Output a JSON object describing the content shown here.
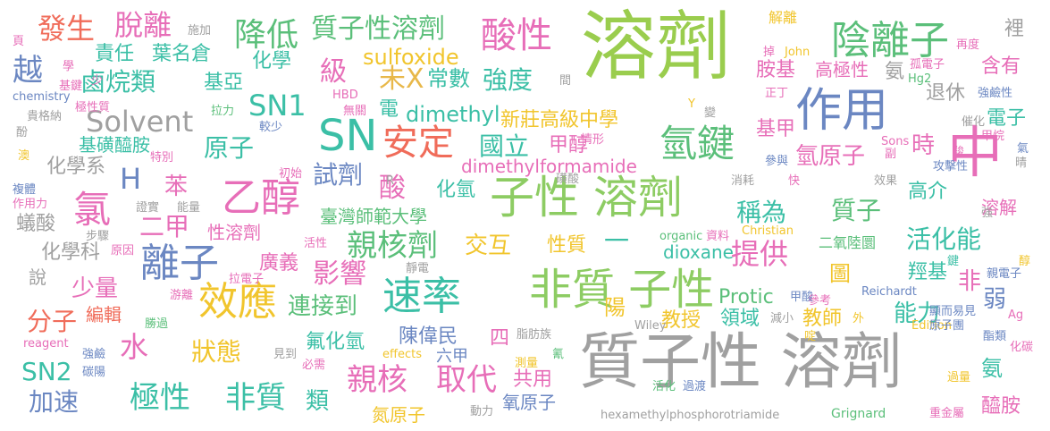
{
  "words": [
    {
      "text": "質子性 溶劑",
      "color": "#a0a0a0"
    },
    {
      "text": "溶劑",
      "color": "#9acd4e"
    },
    {
      "text": "子性 溶劑",
      "color": "#8dcc63"
    },
    {
      "text": "非質 子性",
      "color": "#8dcc63"
    },
    {
      "text": "SN",
      "color": "#3bbfa6"
    },
    {
      "text": "中",
      "color": "#e76eb8"
    },
    {
      "text": "作用",
      "color": "#6b87c2"
    },
    {
      "text": "陰離子",
      "color": "#5bbf7a"
    },
    {
      "text": "效應",
      "color": "#f1c52d"
    },
    {
      "text": "離子",
      "color": "#6b87c2"
    },
    {
      "text": "速率",
      "color": "#3bbfa6"
    },
    {
      "text": "乙醇",
      "color": "#e76eb8"
    },
    {
      "text": "氫鍵",
      "color": "#5bbf7a"
    },
    {
      "text": "安定",
      "color": "#f06c5a"
    },
    {
      "text": "酸性",
      "color": "#e76eb8"
    },
    {
      "text": "極性",
      "color": "#3bbfa6"
    },
    {
      "text": "非質",
      "color": "#3bbfa6"
    },
    {
      "text": "親核",
      "color": "#e76eb8"
    },
    {
      "text": "取代",
      "color": "#e76eb8"
    },
    {
      "text": "親核劑",
      "color": "#5bbf7a"
    },
    {
      "text": "質子性溶劑",
      "color": "#5bbf7a"
    },
    {
      "text": "降低",
      "color": "#5bbf7a"
    },
    {
      "text": "脫離",
      "color": "#e76eb8"
    },
    {
      "text": "發生",
      "color": "#f06c5a"
    },
    {
      "text": "Solvent",
      "color": "#a0a0a0"
    },
    {
      "text": "SN1",
      "color": "#3bbfa6"
    },
    {
      "text": "氯",
      "color": "#e76eb8"
    },
    {
      "text": "H",
      "color": "#6b87c2"
    },
    {
      "text": "苯",
      "color": "#e76eb8"
    },
    {
      "text": "二甲",
      "color": "#e76eb8"
    },
    {
      "text": "鹵烷類",
      "color": "#3bbfa6"
    },
    {
      "text": "責任",
      "color": "#3bbfa6"
    },
    {
      "text": "葉名倉",
      "color": "#3bbfa6"
    },
    {
      "text": "基亞",
      "color": "#3bbfa6"
    },
    {
      "text": "化學",
      "color": "#3bbfa6"
    },
    {
      "text": "越",
      "color": "#6b87c2"
    },
    {
      "text": "級",
      "color": "#e76eb8"
    },
    {
      "text": "sulfoxide",
      "color": "#f1c52d"
    },
    {
      "text": "未X",
      "color": "#e8b84a"
    },
    {
      "text": "常數",
      "color": "#3bbfa6"
    },
    {
      "text": "強度",
      "color": "#3bbfa6"
    },
    {
      "text": "國立",
      "color": "#3bbfa6"
    },
    {
      "text": "甲醇",
      "color": "#e76eb8"
    },
    {
      "text": "新莊高級中學",
      "color": "#f1c52d"
    },
    {
      "text": "dimethyl",
      "color": "#3bbfa6"
    },
    {
      "text": "電",
      "color": "#3bbfa6"
    },
    {
      "text": "dimethylformamide",
      "color": "#e76eb8"
    },
    {
      "text": "試劑",
      "color": "#6b87c2"
    },
    {
      "text": "原子",
      "color": "#3bbfa6"
    },
    {
      "text": "酸",
      "color": "#e76eb8"
    },
    {
      "text": "化氫",
      "color": "#3bbfa6"
    },
    {
      "text": "臺灣師範大學",
      "color": "#5bbf7a"
    },
    {
      "text": "交互",
      "color": "#f1c52d"
    },
    {
      "text": "性質",
      "color": "#f1c52d"
    },
    {
      "text": "一",
      "color": "#3bbfa6"
    },
    {
      "text": "影響",
      "color": "#e76eb8"
    },
    {
      "text": "連接到",
      "color": "#5bbf7a"
    },
    {
      "text": "陳偉民",
      "color": "#6b87c2"
    },
    {
      "text": "四",
      "color": "#e76eb8"
    },
    {
      "text": "稱為",
      "color": "#3bbfa6"
    },
    {
      "text": "質子",
      "color": "#5bbf7a"
    },
    {
      "text": "提供",
      "color": "#e76eb8"
    },
    {
      "text": "活化能",
      "color": "#3bbfa6"
    },
    {
      "text": "氫原子",
      "color": "#e76eb8"
    },
    {
      "text": "胺基",
      "color": "#e76eb8"
    },
    {
      "text": "高極性",
      "color": "#e76eb8"
    },
    {
      "text": "時",
      "color": "#e76eb8"
    },
    {
      "text": "基甲",
      "color": "#e76eb8"
    },
    {
      "text": "電子",
      "color": "#3bbfa6"
    },
    {
      "text": "退休",
      "color": "#a0a0a0"
    },
    {
      "text": "含有",
      "color": "#e76eb8"
    },
    {
      "text": "高介",
      "color": "#3bbfa6"
    },
    {
      "text": "氨",
      "color": "#a0a0a0"
    },
    {
      "text": "圖",
      "color": "#f1c52d"
    },
    {
      "text": "羥基",
      "color": "#3bbfa6"
    },
    {
      "text": "非",
      "color": "#e76eb8"
    },
    {
      "text": "弱",
      "color": "#6b87c2"
    },
    {
      "text": "能力",
      "color": "#3bbfa6"
    },
    {
      "text": "教師",
      "color": "#f1c52d"
    },
    {
      "text": "領域",
      "color": "#3bbfa6"
    },
    {
      "text": "教授",
      "color": "#f1c52d"
    },
    {
      "text": "Protic",
      "color": "#5bbf7a"
    },
    {
      "text": "陽",
      "color": "#f1c52d"
    },
    {
      "text": "dioxane",
      "color": "#3bbfa6"
    },
    {
      "text": "二氧陸圜",
      "color": "#5bbf7a"
    },
    {
      "text": "氟化氫",
      "color": "#3bbfa6"
    },
    {
      "text": "狀態",
      "color": "#f1c52d"
    },
    {
      "text": "水",
      "color": "#e76eb8"
    },
    {
      "text": "SN2",
      "color": "#3bbfa6"
    },
    {
      "text": "分子",
      "color": "#f06c5a"
    },
    {
      "text": "少量",
      "color": "#e76eb8"
    },
    {
      "text": "編輯",
      "color": "#f06c5a"
    },
    {
      "text": "化學系",
      "color": "#a0a0a0"
    },
    {
      "text": "化學科",
      "color": "#a0a0a0"
    },
    {
      "text": "基磺醯胺",
      "color": "#3bbfa6"
    },
    {
      "text": "加速",
      "color": "#6b87c2"
    },
    {
      "text": "廣義",
      "color": "#e76eb8"
    },
    {
      "text": "類",
      "color": "#3bbfa6"
    },
    {
      "text": "共用",
      "color": "#e76eb8"
    },
    {
      "text": "氮原子",
      "color": "#f1c52d"
    },
    {
      "text": "氧原子",
      "color": "#6b87c2"
    },
    {
      "text": "六甲",
      "color": "#6b87c2"
    },
    {
      "text": "性溶劑",
      "color": "#e76eb8"
    },
    {
      "text": "醯胺",
      "color": "#e76eb8"
    },
    {
      "text": "氨",
      "color": "#3bbfa6"
    },
    {
      "text": "溶解",
      "color": "#e76eb8"
    },
    {
      "text": "蟻酸",
      "color": "#a0a0a0"
    },
    {
      "text": "說",
      "color": "#a0a0a0"
    },
    {
      "text": "裡",
      "color": "#a0a0a0"
    },
    {
      "text": "Grignard",
      "color": "#5bbf7a"
    },
    {
      "text": "hexamethylphosphorotriamide",
      "color": "#a0a0a0"
    },
    {
      "text": "chemistry",
      "color": "#6b87c2"
    },
    {
      "text": "reagent",
      "color": "#e76eb8"
    },
    {
      "text": "effects",
      "color": "#f1c52d"
    },
    {
      "text": "organic",
      "color": "#5bbf7a"
    },
    {
      "text": "Christian",
      "color": "#f1c52d"
    },
    {
      "text": "Reichardt",
      "color": "#6b87c2"
    },
    {
      "text": "Wiley",
      "color": "#a0a0a0"
    },
    {
      "text": "Edition",
      "color": "#f1c52d"
    },
    {
      "text": "Sons",
      "color": "#e76eb8"
    },
    {
      "text": "John",
      "color": "#f1c52d"
    },
    {
      "text": "HBD",
      "color": "#e76eb8"
    },
    {
      "text": "Hg2",
      "color": "#5bbf7a"
    },
    {
      "text": "Ag",
      "color": "#e76eb8"
    },
    {
      "text": "Y",
      "color": "#f1c52d"
    },
    {
      "text": "R",
      "color": "#a0a0a0"
    },
    {
      "text": "施加",
      "color": "#a0a0a0"
    },
    {
      "text": "頁",
      "color": "#e76eb8"
    },
    {
      "text": "學",
      "color": "#e76eb8"
    },
    {
      "text": "基鍵",
      "color": "#e76eb8"
    },
    {
      "text": "少",
      "color": "#e76eb8"
    },
    {
      "text": "極性質",
      "color": "#e76eb8"
    },
    {
      "text": "貴格納",
      "color": "#a0a0a0"
    },
    {
      "text": "酚",
      "color": "#a0a0a0"
    },
    {
      "text": "澳",
      "color": "#f1c52d"
    },
    {
      "text": "特別",
      "color": "#e76eb8"
    },
    {
      "text": "複體",
      "color": "#6b87c2"
    },
    {
      "text": "作用力",
      "color": "#e76eb8"
    },
    {
      "text": "證實",
      "color": "#a0a0a0"
    },
    {
      "text": "能量",
      "color": "#a0a0a0"
    },
    {
      "text": "步驟",
      "color": "#a0a0a0"
    },
    {
      "text": "原因",
      "color": "#e76eb8"
    },
    {
      "text": "強鹼",
      "color": "#6b87c2"
    },
    {
      "text": "碳陽",
      "color": "#6b87c2"
    },
    {
      "text": "勝過",
      "color": "#5bbf7a"
    },
    {
      "text": "游離",
      "color": "#e76eb8"
    },
    {
      "text": "拉電子",
      "color": "#e76eb8"
    },
    {
      "text": "見到",
      "color": "#a0a0a0"
    },
    {
      "text": "必需",
      "color": "#e76eb8"
    },
    {
      "text": "靜電",
      "color": "#a0a0a0"
    },
    {
      "text": "活性",
      "color": "#e76eb8"
    },
    {
      "text": "初始",
      "color": "#e76eb8"
    },
    {
      "text": "較少",
      "color": "#6b87c2"
    },
    {
      "text": "無關",
      "color": "#e76eb8"
    },
    {
      "text": "拉力",
      "color": "#5bbf7a"
    },
    {
      "text": "情形",
      "color": "#e76eb8"
    },
    {
      "text": "磺酸",
      "color": "#a0a0a0"
    },
    {
      "text": "消耗",
      "color": "#a0a0a0"
    },
    {
      "text": "資料",
      "color": "#e76eb8"
    },
    {
      "text": "脂肪族",
      "color": "#a0a0a0"
    },
    {
      "text": "氰",
      "color": "#5bbf7a"
    },
    {
      "text": "測量",
      "color": "#f1c52d"
    },
    {
      "text": "活化",
      "color": "#5bbf7a"
    },
    {
      "text": "過渡",
      "color": "#6b87c2"
    },
    {
      "text": "動力",
      "color": "#a0a0a0"
    },
    {
      "text": "重金屬",
      "color": "#e76eb8"
    },
    {
      "text": "過量",
      "color": "#f1c52d"
    },
    {
      "text": "化碳",
      "color": "#e76eb8"
    },
    {
      "text": "酯類",
      "color": "#6b87c2"
    },
    {
      "text": "醇",
      "color": "#f1c52d"
    },
    {
      "text": "親電子",
      "color": "#6b87c2"
    },
    {
      "text": "鍵",
      "color": "#3bbfa6"
    },
    {
      "text": "強",
      "color": "#a0a0a0"
    },
    {
      "text": "減小",
      "color": "#a0a0a0"
    },
    {
      "text": "參考",
      "color": "#e76eb8"
    },
    {
      "text": "甲酸",
      "color": "#6b87c2"
    },
    {
      "text": "外",
      "color": "#f1c52d"
    },
    {
      "text": "顯而易見",
      "color": "#6b87c2"
    },
    {
      "text": "原子團",
      "color": "#6b87c2"
    },
    {
      "text": "啶",
      "color": "#f1c52d"
    },
    {
      "text": "快",
      "color": "#e76eb8"
    },
    {
      "text": "效果",
      "color": "#a0a0a0"
    },
    {
      "text": "參與",
      "color": "#6b87c2"
    },
    {
      "text": "副",
      "color": "#e76eb8"
    },
    {
      "text": "攻擊性",
      "color": "#6b87c2"
    },
    {
      "text": "羧",
      "color": "#e76eb8"
    },
    {
      "text": "氣",
      "color": "#6b87c2"
    },
    {
      "text": "甲烷",
      "color": "#e76eb8"
    },
    {
      "text": "晴",
      "color": "#a0a0a0"
    },
    {
      "text": "催化",
      "color": "#a0a0a0"
    },
    {
      "text": "強鹼性",
      "color": "#6b87c2"
    },
    {
      "text": "變",
      "color": "#a0a0a0"
    },
    {
      "text": "正丁",
      "color": "#e76eb8"
    },
    {
      "text": "孤電子",
      "color": "#e76eb8"
    },
    {
      "text": "解離",
      "color": "#f1c52d"
    },
    {
      "text": "再度",
      "color": "#e76eb8"
    },
    {
      "text": "掉",
      "color": "#e76eb8"
    },
    {
      "text": "間",
      "color": "#a0a0a0"
    }
  ]
}
